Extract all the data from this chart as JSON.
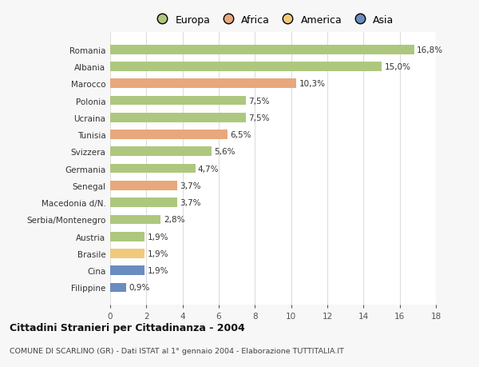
{
  "countries": [
    "Romania",
    "Albania",
    "Marocco",
    "Polonia",
    "Ucraina",
    "Tunisia",
    "Svizzera",
    "Germania",
    "Senegal",
    "Macedonia d/N.",
    "Serbia/Montenegro",
    "Austria",
    "Brasile",
    "Cina",
    "Filippine"
  ],
  "values": [
    16.8,
    15.0,
    10.3,
    7.5,
    7.5,
    6.5,
    5.6,
    4.7,
    3.7,
    3.7,
    2.8,
    1.9,
    1.9,
    1.9,
    0.9
  ],
  "labels": [
    "16,8%",
    "15,0%",
    "10,3%",
    "7,5%",
    "7,5%",
    "6,5%",
    "5,6%",
    "4,7%",
    "3,7%",
    "3,7%",
    "2,8%",
    "1,9%",
    "1,9%",
    "1,9%",
    "0,9%"
  ],
  "continents": [
    "Europa",
    "Europa",
    "Africa",
    "Europa",
    "Europa",
    "Africa",
    "Europa",
    "Europa",
    "Africa",
    "Europa",
    "Europa",
    "Europa",
    "America",
    "Asia",
    "Asia"
  ],
  "colors": {
    "Europa": "#adc87e",
    "Africa": "#e8a87c",
    "America": "#f0c97a",
    "Asia": "#6b8cbf"
  },
  "bg_color": "#f7f7f7",
  "plot_bg_color": "#ffffff",
  "title": "Cittadini Stranieri per Cittadinanza - 2004",
  "subtitle": "COMUNE DI SCARLINO (GR) - Dati ISTAT al 1° gennaio 2004 - Elaborazione TUTTITALIA.IT",
  "xlim": [
    0,
    18
  ],
  "xticks": [
    0,
    2,
    4,
    6,
    8,
    10,
    12,
    14,
    16,
    18
  ],
  "grid_color": "#dddddd",
  "legend_order": [
    "Europa",
    "Africa",
    "America",
    "Asia"
  ]
}
